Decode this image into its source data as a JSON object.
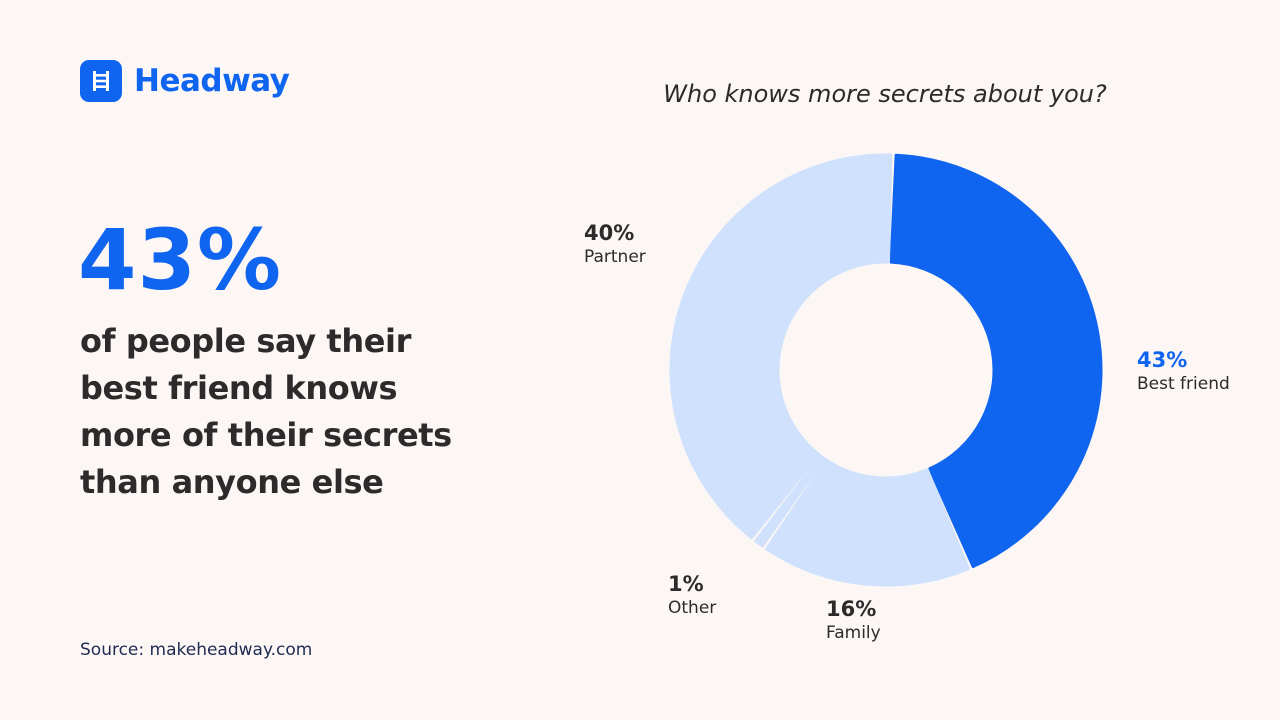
{
  "brand": {
    "name": "Headway"
  },
  "highlight": {
    "value": "43%",
    "text": "of people say their best friend knows more of their secrets than anyone else"
  },
  "source": "Source: makeheadway.com",
  "colors": {
    "accent": "#1065f0",
    "light": "#cfe1fd",
    "text": "#2c2a2b",
    "background": "#fcf7f4"
  },
  "chart_data": {
    "type": "pie",
    "donut": true,
    "title": "Who knows more secrets about you?",
    "slices": [
      {
        "label": "Best friend",
        "value": 43,
        "display": "43%",
        "color": "#1065f0"
      },
      {
        "label": "Family",
        "value": 16,
        "display": "16%",
        "color": "#cfe1fd"
      },
      {
        "label": "Other",
        "value": 1,
        "display": "1%",
        "color": "#cfe1fd"
      },
      {
        "label": "Partner",
        "value": 40,
        "display": "40%",
        "color": "#cfe1fd"
      }
    ]
  }
}
